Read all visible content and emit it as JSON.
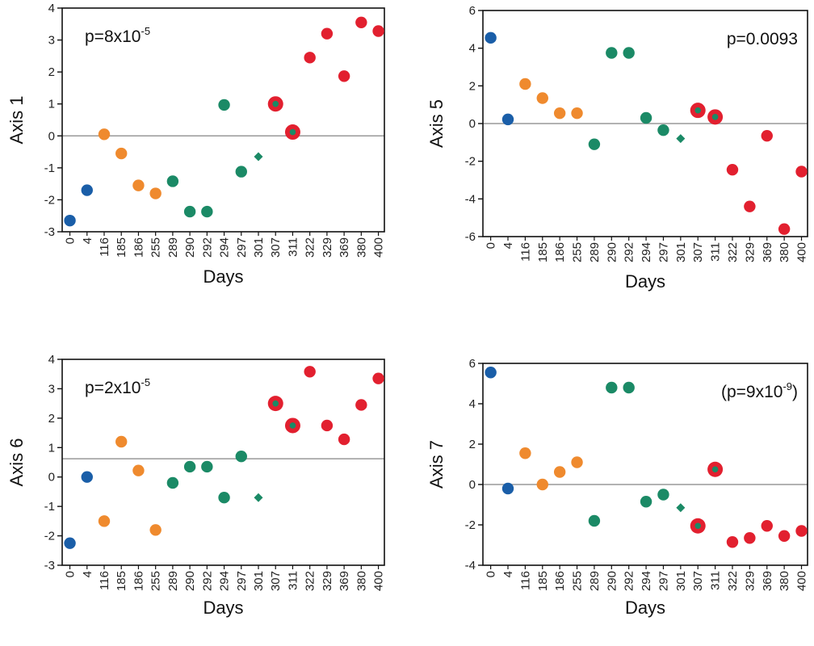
{
  "colors": {
    "baseline": "#1a5ea8",
    "early": "#ef8a2e",
    "middle": "#1b8a66",
    "late": "#e2202f",
    "refline": "#999999"
  },
  "chart_data": [
    {
      "type": "scatter",
      "ylabel": "Axis 1",
      "xlabel": "Days",
      "ylim": [
        -3,
        4
      ],
      "yticks": [
        -3,
        -2,
        -1,
        0,
        1,
        2,
        3,
        4
      ],
      "hline": 0,
      "annotation": {
        "pre": "p=8x10",
        "sup": "-5",
        "post": "",
        "placement": "top-left"
      },
      "categories": [
        "0",
        "4",
        "116",
        "185",
        "186",
        "255",
        "289",
        "290",
        "292",
        "294",
        "297",
        "301",
        "307",
        "311",
        "322",
        "329",
        "369",
        "380",
        "400"
      ],
      "points": [
        {
          "x": "0",
          "y": -2.65,
          "group": "baseline",
          "marker": "circle"
        },
        {
          "x": "4",
          "y": -1.7,
          "group": "baseline",
          "marker": "circle"
        },
        {
          "x": "116",
          "y": 0.05,
          "group": "early",
          "marker": "circle"
        },
        {
          "x": "185",
          "y": -0.55,
          "group": "early",
          "marker": "circle"
        },
        {
          "x": "186",
          "y": -1.55,
          "group": "early",
          "marker": "circle"
        },
        {
          "x": "255",
          "y": -1.8,
          "group": "early",
          "marker": "circle"
        },
        {
          "x": "289",
          "y": -1.42,
          "group": "middle",
          "marker": "circle"
        },
        {
          "x": "290",
          "y": -2.37,
          "group": "middle",
          "marker": "circle"
        },
        {
          "x": "292",
          "y": -2.37,
          "group": "middle",
          "marker": "circle"
        },
        {
          "x": "294",
          "y": 0.97,
          "group": "middle",
          "marker": "circle"
        },
        {
          "x": "297",
          "y": -1.12,
          "group": "middle",
          "marker": "circle"
        },
        {
          "x": "301",
          "y": -0.65,
          "group": "middle",
          "marker": "diamond"
        },
        {
          "x": "307",
          "y": 1.0,
          "group": "middle",
          "marker": "ringed"
        },
        {
          "x": "311",
          "y": 0.12,
          "group": "middle",
          "marker": "ringed"
        },
        {
          "x": "322",
          "y": 2.45,
          "group": "late",
          "marker": "circle"
        },
        {
          "x": "329",
          "y": 3.2,
          "group": "late",
          "marker": "circle"
        },
        {
          "x": "369",
          "y": 1.87,
          "group": "late",
          "marker": "circle"
        },
        {
          "x": "380",
          "y": 3.55,
          "group": "late",
          "marker": "circle"
        },
        {
          "x": "400",
          "y": 3.28,
          "group": "late",
          "marker": "circle"
        }
      ]
    },
    {
      "type": "scatter",
      "ylabel": "Axis 5",
      "xlabel": "Days",
      "ylim": [
        -6,
        6
      ],
      "yticks": [
        -6,
        -4,
        -2,
        0,
        2,
        4,
        6
      ],
      "hline": 0,
      "annotation": {
        "pre": "p=0.0093",
        "sup": "",
        "post": "",
        "placement": "top-right"
      },
      "categories": [
        "0",
        "4",
        "116",
        "185",
        "186",
        "255",
        "289",
        "290",
        "292",
        "294",
        "297",
        "301",
        "307",
        "311",
        "322",
        "329",
        "369",
        "380",
        "400"
      ],
      "points": [
        {
          "x": "0",
          "y": 4.55,
          "group": "baseline",
          "marker": "circle"
        },
        {
          "x": "4",
          "y": 0.22,
          "group": "baseline",
          "marker": "circle"
        },
        {
          "x": "116",
          "y": 2.1,
          "group": "early",
          "marker": "circle"
        },
        {
          "x": "185",
          "y": 1.35,
          "group": "early",
          "marker": "circle"
        },
        {
          "x": "186",
          "y": 0.55,
          "group": "early",
          "marker": "circle"
        },
        {
          "x": "255",
          "y": 0.55,
          "group": "early",
          "marker": "circle"
        },
        {
          "x": "289",
          "y": -1.1,
          "group": "middle",
          "marker": "circle"
        },
        {
          "x": "290",
          "y": 3.75,
          "group": "middle",
          "marker": "circle"
        },
        {
          "x": "292",
          "y": 3.75,
          "group": "middle",
          "marker": "circle"
        },
        {
          "x": "294",
          "y": 0.3,
          "group": "middle",
          "marker": "circle"
        },
        {
          "x": "297",
          "y": -0.35,
          "group": "middle",
          "marker": "circle"
        },
        {
          "x": "301",
          "y": -0.8,
          "group": "middle",
          "marker": "diamond"
        },
        {
          "x": "307",
          "y": 0.7,
          "group": "middle",
          "marker": "ringed"
        },
        {
          "x": "311",
          "y": 0.35,
          "group": "middle",
          "marker": "ringed"
        },
        {
          "x": "322",
          "y": -2.45,
          "group": "late",
          "marker": "circle"
        },
        {
          "x": "329",
          "y": -4.4,
          "group": "late",
          "marker": "circle"
        },
        {
          "x": "369",
          "y": -0.65,
          "group": "late",
          "marker": "circle"
        },
        {
          "x": "380",
          "y": -5.6,
          "group": "late",
          "marker": "circle"
        },
        {
          "x": "400",
          "y": -2.55,
          "group": "late",
          "marker": "circle"
        }
      ]
    },
    {
      "type": "scatter",
      "ylabel": "Axis 6",
      "xlabel": "Days",
      "ylim": [
        -3,
        4
      ],
      "yticks": [
        -3,
        -2,
        -1,
        0,
        1,
        2,
        3,
        4
      ],
      "hline": 0.62,
      "annotation": {
        "pre": "p=2x10",
        "sup": "-5",
        "post": "",
        "placement": "top-left"
      },
      "categories": [
        "0",
        "4",
        "116",
        "185",
        "186",
        "255",
        "289",
        "290",
        "292",
        "294",
        "297",
        "301",
        "307",
        "311",
        "322",
        "329",
        "369",
        "380",
        "400"
      ],
      "points": [
        {
          "x": "0",
          "y": -2.25,
          "group": "baseline",
          "marker": "circle"
        },
        {
          "x": "4",
          "y": 0.0,
          "group": "baseline",
          "marker": "circle"
        },
        {
          "x": "116",
          "y": -1.5,
          "group": "early",
          "marker": "circle"
        },
        {
          "x": "185",
          "y": 1.2,
          "group": "early",
          "marker": "circle"
        },
        {
          "x": "186",
          "y": 0.22,
          "group": "early",
          "marker": "circle"
        },
        {
          "x": "255",
          "y": -1.8,
          "group": "early",
          "marker": "circle"
        },
        {
          "x": "289",
          "y": -0.2,
          "group": "middle",
          "marker": "circle"
        },
        {
          "x": "290",
          "y": 0.35,
          "group": "middle",
          "marker": "circle"
        },
        {
          "x": "292",
          "y": 0.35,
          "group": "middle",
          "marker": "circle"
        },
        {
          "x": "294",
          "y": -0.7,
          "group": "middle",
          "marker": "circle"
        },
        {
          "x": "297",
          "y": 0.7,
          "group": "middle",
          "marker": "circle"
        },
        {
          "x": "301",
          "y": -0.7,
          "group": "middle",
          "marker": "diamond"
        },
        {
          "x": "307",
          "y": 2.5,
          "group": "middle",
          "marker": "ringed"
        },
        {
          "x": "311",
          "y": 1.75,
          "group": "middle",
          "marker": "ringed"
        },
        {
          "x": "322",
          "y": 3.58,
          "group": "late",
          "marker": "circle"
        },
        {
          "x": "329",
          "y": 1.75,
          "group": "late",
          "marker": "circle"
        },
        {
          "x": "369",
          "y": 1.28,
          "group": "late",
          "marker": "circle"
        },
        {
          "x": "380",
          "y": 2.45,
          "group": "late",
          "marker": "circle"
        },
        {
          "x": "400",
          "y": 3.35,
          "group": "late",
          "marker": "circle"
        }
      ]
    },
    {
      "type": "scatter",
      "ylabel": "Axis 7",
      "xlabel": "Days",
      "ylim": [
        -4,
        6
      ],
      "yticks": [
        -4,
        -2,
        0,
        2,
        4,
        6
      ],
      "hline": 0,
      "annotation": {
        "pre": "(p=9x10",
        "sup": "-9",
        "post": ")",
        "placement": "top-right"
      },
      "categories": [
        "0",
        "4",
        "116",
        "185",
        "186",
        "255",
        "289",
        "290",
        "292",
        "294",
        "297",
        "301",
        "307",
        "311",
        "322",
        "329",
        "369",
        "380",
        "400"
      ],
      "points": [
        {
          "x": "0",
          "y": 5.55,
          "group": "baseline",
          "marker": "circle"
        },
        {
          "x": "4",
          "y": -0.2,
          "group": "baseline",
          "marker": "circle"
        },
        {
          "x": "116",
          "y": 1.55,
          "group": "early",
          "marker": "circle"
        },
        {
          "x": "185",
          "y": 0.0,
          "group": "early",
          "marker": "circle"
        },
        {
          "x": "186",
          "y": 0.62,
          "group": "early",
          "marker": "circle"
        },
        {
          "x": "255",
          "y": 1.1,
          "group": "early",
          "marker": "circle"
        },
        {
          "x": "289",
          "y": -1.8,
          "group": "middle",
          "marker": "circle"
        },
        {
          "x": "290",
          "y": 4.8,
          "group": "middle",
          "marker": "circle"
        },
        {
          "x": "292",
          "y": 4.8,
          "group": "middle",
          "marker": "circle"
        },
        {
          "x": "294",
          "y": -0.85,
          "group": "middle",
          "marker": "circle"
        },
        {
          "x": "297",
          "y": -0.5,
          "group": "middle",
          "marker": "circle"
        },
        {
          "x": "301",
          "y": -1.15,
          "group": "middle",
          "marker": "diamond"
        },
        {
          "x": "307",
          "y": -2.05,
          "group": "middle",
          "marker": "ringed"
        },
        {
          "x": "311",
          "y": 0.75,
          "group": "middle",
          "marker": "ringed"
        },
        {
          "x": "322",
          "y": -2.85,
          "group": "late",
          "marker": "circle"
        },
        {
          "x": "329",
          "y": -2.65,
          "group": "late",
          "marker": "circle"
        },
        {
          "x": "369",
          "y": -2.05,
          "group": "late",
          "marker": "circle"
        },
        {
          "x": "380",
          "y": -2.55,
          "group": "late",
          "marker": "circle"
        },
        {
          "x": "400",
          "y": -2.3,
          "group": "late",
          "marker": "circle"
        }
      ]
    }
  ]
}
